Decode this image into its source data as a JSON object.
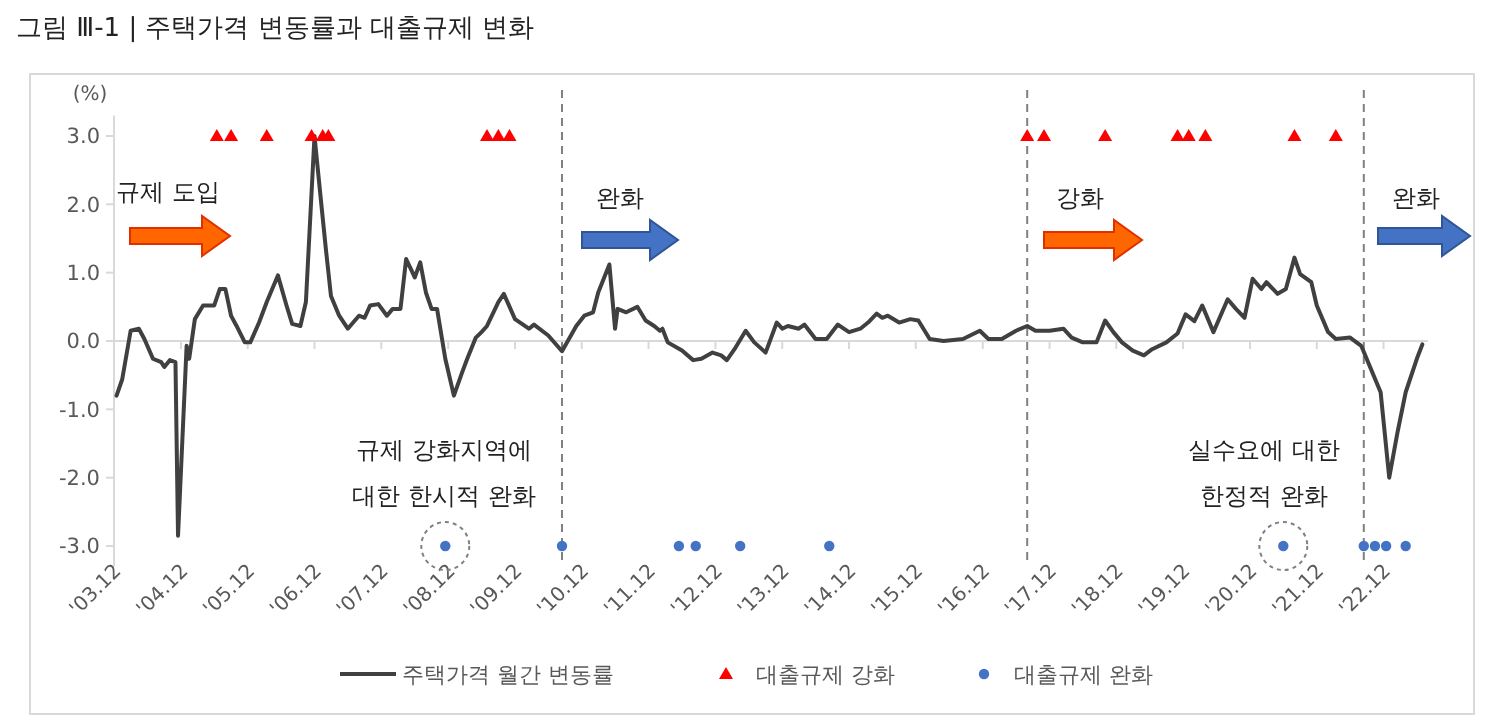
{
  "chart_data": {
    "type": "line",
    "title": "그림 Ⅲ-1 | 주택가격 변동률과 대출규제 변화",
    "ylabel": "(%)",
    "xlim": [
      "2003-12",
      "2023-08"
    ],
    "xticks": [
      {
        "value": "2003-12",
        "label": "'03.12"
      },
      {
        "value": "2004-12",
        "label": "'04.12"
      },
      {
        "value": "2005-12",
        "label": "'05.12"
      },
      {
        "value": "2006-12",
        "label": "'06.12"
      },
      {
        "value": "2007-12",
        "label": "'07.12"
      },
      {
        "value": "2008-12",
        "label": "'08.12"
      },
      {
        "value": "2009-12",
        "label": "'09.12"
      },
      {
        "value": "2010-12",
        "label": "'10.12"
      },
      {
        "value": "2011-12",
        "label": "'11.12"
      },
      {
        "value": "2012-12",
        "label": "'12.12"
      },
      {
        "value": "2013-12",
        "label": "'13.12"
      },
      {
        "value": "2014-12",
        "label": "'14.12"
      },
      {
        "value": "2015-12",
        "label": "'15.12"
      },
      {
        "value": "2016-12",
        "label": "'16.12"
      },
      {
        "value": "2017-12",
        "label": "'17.12"
      },
      {
        "value": "2018-12",
        "label": "'18.12"
      },
      {
        "value": "2019-12",
        "label": "'19.12"
      },
      {
        "value": "2020-12",
        "label": "'20.12"
      },
      {
        "value": "2021-12",
        "label": "'21.12"
      },
      {
        "value": "2022-12",
        "label": "'22.12"
      }
    ],
    "ylim": [
      -3.3,
      3.3
    ],
    "yticks": [
      {
        "value": 3,
        "label": "3.0"
      },
      {
        "value": 2,
        "label": "2.0"
      },
      {
        "value": 1,
        "label": "1.0"
      },
      {
        "value": 0,
        "label": "0.0"
      },
      {
        "value": -1,
        "label": "-1.0"
      },
      {
        "value": -2,
        "label": "-2.0"
      },
      {
        "value": -3,
        "label": "-3.0"
      }
    ],
    "legend": "bottom",
    "series": [
      {
        "name": "주택가격 월간 변동률",
        "color": "#404040",
        "marker": "none",
        "x": [
          "2003-12-15",
          "2004-01-15",
          "2004-03",
          "2004-04-15",
          "2004-05-15",
          "2004-07",
          "2004-08-15",
          "2004-09",
          "2004-10",
          "2004-11",
          "2004-11-15",
          "2005-01",
          "2005-01-15",
          "2005-02-15",
          "2005-04",
          "2005-06",
          "2005-07",
          "2005-08",
          "2005-09",
          "2005-10",
          "2005-11-15",
          "2005-12-15",
          "2006-02",
          "2006-03-15",
          "2006-05-15",
          "2006-07",
          "2006-08",
          "2006-09-15",
          "2006-10-15",
          "2006-12",
          "2007-01",
          "2007-02",
          "2007-03",
          "2007-04-15",
          "2007-06",
          "2007-08",
          "2007-09",
          "2007-10",
          "2007-11-15",
          "2008-01",
          "2008-02",
          "2008-03-15",
          "2008-04-15",
          "2008-05-15",
          "2008-06",
          "2008-07",
          "2008-08",
          "2008-09",
          "2008-10",
          "2008-11-15",
          "2009-01",
          "2009-02-15",
          "2009-03-15",
          "2009-05",
          "2009-06",
          "2009-07",
          "2009-09",
          "2009-10",
          "2009-12",
          "2010-02-15",
          "2010-03-15",
          "2010-06",
          "2010-08-15",
          "2010-11",
          "2010-12-15",
          "2011-02",
          "2011-03",
          "2011-05",
          "2011-06",
          "2011-06-15",
          "2011-08",
          "2011-10",
          "2011-11-15",
          "2012-01",
          "2012-02",
          "2012-02-15",
          "2012-03-15",
          "2012-06",
          "2012-08",
          "2012-09-15",
          "2012-11-15",
          "2013-01",
          "2013-02",
          "2013-03-15",
          "2013-05-15",
          "2013-07",
          "2013-09",
          "2013-11",
          "2013-12",
          "2014-01",
          "2014-03",
          "2014-04",
          "2014-06",
          "2014-08",
          "2014-10",
          "2014-12",
          "2015-02",
          "2015-03-15",
          "2015-05",
          "2015-06",
          "2015-07",
          "2015-09",
          "2015-11",
          "2015-12-15",
          "2016-02-15",
          "2016-05",
          "2016-08-15",
          "2016-11-15",
          "2017-01",
          "2017-03-15",
          "2017-06",
          "2017-08",
          "2017-09-15",
          "2017-12",
          "2018-02-15",
          "2018-04",
          "2018-06",
          "2018-08-15",
          "2018-10",
          "2018-11-15",
          "2019-01",
          "2019-03",
          "2019-05",
          "2019-06-15",
          "2019-09",
          "2019-11",
          "2019-12-15",
          "2020-02",
          "2020-03-15",
          "2020-05-15",
          "2020-08",
          "2020-09-15",
          "2020-11",
          "2020-12-15",
          "2021-02",
          "2021-03",
          "2021-05",
          "2021-06-15",
          "2021-08",
          "2021-09",
          "2021-11",
          "2021-12",
          "2022-02",
          "2022-03-15",
          "2022-06",
          "2022-08",
          "2022-09-15",
          "2022-11-15",
          "2023-01",
          "2023-02-15",
          "2023-04",
          "2023-06",
          "2023-07"
        ],
        "values": [
          -0.8,
          -0.56,
          0.15,
          0.18,
          0.03,
          -0.26,
          -0.31,
          -0.38,
          -0.28,
          -0.31,
          -2.85,
          -0.07,
          -0.26,
          0.32,
          0.52,
          0.52,
          0.76,
          0.76,
          0.37,
          0.22,
          -0.02,
          -0.02,
          0.27,
          0.57,
          0.96,
          0.52,
          0.25,
          0.22,
          0.57,
          3.0,
          2.17,
          1.35,
          0.66,
          0.37,
          0.18,
          0.37,
          0.34,
          0.52,
          0.54,
          0.37,
          0.47,
          0.47,
          1.2,
          1.03,
          0.93,
          1.15,
          0.71,
          0.47,
          0.47,
          -0.26,
          -0.8,
          -0.46,
          -0.26,
          0.05,
          0.13,
          0.22,
          0.57,
          0.69,
          0.32,
          0.18,
          0.24,
          0.08,
          -0.15,
          0.22,
          0.37,
          0.42,
          0.71,
          1.12,
          0.18,
          0.47,
          0.42,
          0.5,
          0.3,
          0.22,
          0.15,
          0.18,
          -0.02,
          -0.14,
          -0.28,
          -0.26,
          -0.17,
          -0.21,
          -0.28,
          -0.12,
          0.15,
          -0.02,
          -0.17,
          0.27,
          0.18,
          0.22,
          0.18,
          0.24,
          0.03,
          0.03,
          0.24,
          0.13,
          0.18,
          0.27,
          0.4,
          0.34,
          0.37,
          0.27,
          0.32,
          0.3,
          0.03,
          0.0,
          0.03,
          0.15,
          0.03,
          0.03,
          0.15,
          0.22,
          0.15,
          0.15,
          0.18,
          0.05,
          -0.02,
          -0.02,
          0.3,
          0.13,
          -0.02,
          -0.14,
          -0.21,
          -0.12,
          -0.02,
          0.11,
          0.39,
          0.29,
          0.52,
          0.13,
          0.61,
          0.47,
          0.34,
          0.91,
          0.76,
          0.86,
          0.69,
          0.76,
          1.22,
          0.98,
          0.86,
          0.52,
          0.13,
          0.03,
          0.05,
          -0.07,
          -0.36,
          -0.75,
          -2.0,
          -1.34,
          -0.75,
          -0.26,
          -0.05
        ]
      },
      {
        "name": "대출규제 강화",
        "type": "scatter",
        "color": "#ff0000",
        "marker": "triangle",
        "x": [
          "2005-06-15",
          "2005-09",
          "2006-03-15",
          "2006-11-15",
          "2007-01-15",
          "2007-02-15",
          "2009-07",
          "2009-09",
          "2009-11",
          "2017-08",
          "2017-11",
          "2018-10",
          "2019-11",
          "2020-01",
          "2020-04",
          "2021-08",
          "2022-03-15"
        ],
        "values": [
          3,
          3,
          3,
          3,
          3,
          3,
          3,
          3,
          3,
          3,
          3,
          3,
          3,
          3,
          3,
          3,
          3
        ]
      },
      {
        "name": "대출규제 완화",
        "type": "scatter",
        "color": "#4472c4",
        "marker": "circle",
        "x": [
          "2008-11-15",
          "2010-08-15",
          "2012-05-15",
          "2012-08-15",
          "2013-04-15",
          "2014-08-15",
          "2021-06",
          "2022-08-15",
          "2022-10-15",
          "2022-12-15",
          "2023-04"
        ],
        "values": [
          -3,
          -3,
          -3,
          -3,
          -3,
          -3,
          -3,
          -3,
          -3,
          -3,
          -3
        ]
      }
    ],
    "ref_lines": [
      {
        "axis": "x",
        "value": "2010-08-15",
        "color": "#808080",
        "line_style": "dashed"
      },
      {
        "axis": "x",
        "value": "2017-08",
        "color": "#808080",
        "line_style": "dashed"
      },
      {
        "axis": "x",
        "value": "2022-08-15",
        "color": "#808080",
        "line_style": "dashed"
      }
    ],
    "annotations": [
      "규제 도입",
      "완화",
      "강화",
      "완화",
      "규제 강화지역에\n대한 한시적 완화",
      "실수요에 대한\n한정적 완화"
    ]
  }
}
